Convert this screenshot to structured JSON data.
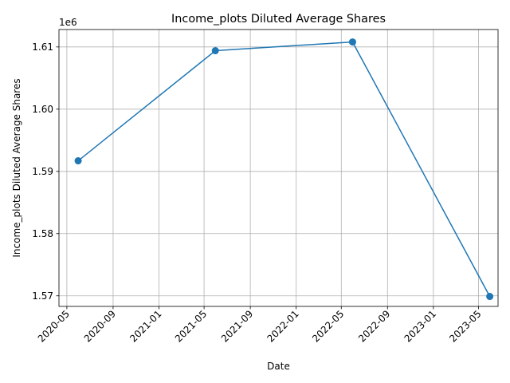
{
  "chart_data": {
    "type": "line",
    "title": "Income_plots Diluted Average Shares",
    "xlabel": "Date",
    "ylabel": "Income_plots Diluted Average Shares",
    "y_offset_label": "1e6",
    "x_ticks": [
      "2020-05",
      "2020-09",
      "2021-01",
      "2021-05",
      "2021-09",
      "2022-01",
      "2022-05",
      "2022-09",
      "2023-01",
      "2023-05"
    ],
    "y_ticks": [
      "1.57",
      "1.58",
      "1.59",
      "1.60",
      "1.61"
    ],
    "y_tick_values": [
      1570000,
      1580000,
      1590000,
      1600000,
      1610000
    ],
    "ylim": [
      1568300,
      1612800
    ],
    "xlim": [
      "2020-04-10",
      "2023-06-22"
    ],
    "grid": true,
    "series": [
      {
        "color": "#1f77b4",
        "marker": "circle",
        "points": [
          {
            "x": "2020-05-31",
            "y": 1591700
          },
          {
            "x": "2021-05-31",
            "y": 1609400
          },
          {
            "x": "2022-05-31",
            "y": 1610800
          },
          {
            "x": "2023-05-31",
            "y": 1569900
          }
        ]
      }
    ]
  }
}
